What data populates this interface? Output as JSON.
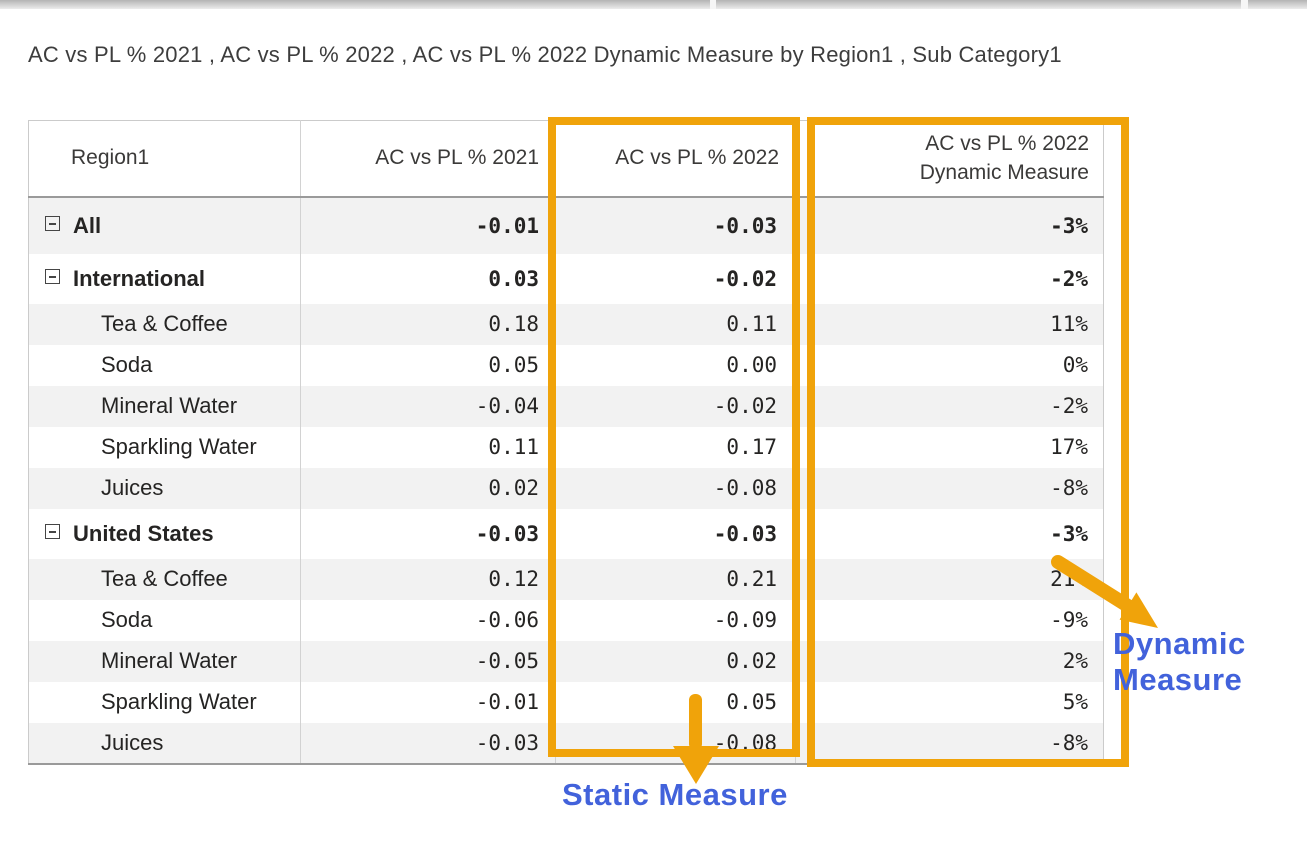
{
  "page": {
    "title": "AC vs PL % 2021 , AC vs PL % 2022 , AC vs PL % 2022 Dynamic Measure by Region1 , Sub Category1"
  },
  "table": {
    "columns": [
      "Region1",
      "AC vs PL % 2021",
      "AC vs PL % 2022",
      "AC vs PL % 2022 Dynamic Measure"
    ],
    "rows": [
      {
        "label": "All",
        "kind": "total",
        "expandable": true,
        "v2021": "-0.01",
        "v2022": "-0.03",
        "vdyn": "-3%"
      },
      {
        "label": "International",
        "kind": "group",
        "expandable": true,
        "v2021": "0.03",
        "v2022": "-0.02",
        "vdyn": "-2%"
      },
      {
        "label": "Tea & Coffee",
        "kind": "leaf",
        "expandable": false,
        "v2021": "0.18",
        "v2022": "0.11",
        "vdyn": "11%"
      },
      {
        "label": "Soda",
        "kind": "leaf",
        "expandable": false,
        "v2021": "0.05",
        "v2022": "0.00",
        "vdyn": "0%"
      },
      {
        "label": "Mineral Water",
        "kind": "leaf",
        "expandable": false,
        "v2021": "-0.04",
        "v2022": "-0.02",
        "vdyn": "-2%"
      },
      {
        "label": "Sparkling Water",
        "kind": "leaf",
        "expandable": false,
        "v2021": "0.11",
        "v2022": "0.17",
        "vdyn": "17%"
      },
      {
        "label": "Juices",
        "kind": "leaf",
        "expandable": false,
        "v2021": "0.02",
        "v2022": "-0.08",
        "vdyn": "-8%"
      },
      {
        "label": "United States",
        "kind": "group",
        "expandable": true,
        "v2021": "-0.03",
        "v2022": "-0.03",
        "vdyn": "-3%"
      },
      {
        "label": "Tea & Coffee",
        "kind": "leaf",
        "expandable": false,
        "v2021": "0.12",
        "v2022": "0.21",
        "vdyn": "21%"
      },
      {
        "label": "Soda",
        "kind": "leaf",
        "expandable": false,
        "v2021": "-0.06",
        "v2022": "-0.09",
        "vdyn": "-9%"
      },
      {
        "label": "Mineral Water",
        "kind": "leaf",
        "expandable": false,
        "v2021": "-0.05",
        "v2022": "0.02",
        "vdyn": "2%"
      },
      {
        "label": "Sparkling Water",
        "kind": "leaf",
        "expandable": false,
        "v2021": "-0.01",
        "v2022": "0.05",
        "vdyn": "5%"
      },
      {
        "label": "Juices",
        "kind": "leaf",
        "expandable": false,
        "v2021": "-0.03",
        "v2022": "-0.08",
        "vdyn": "-8%"
      }
    ]
  },
  "annotations": {
    "static_label": "Static Measure",
    "dynamic_label": "Dynamic Measure",
    "highlight_color": "#F0A30A",
    "label_color": "#4262DB",
    "icons": {
      "row_toggle": "minus-box-collapse"
    }
  }
}
